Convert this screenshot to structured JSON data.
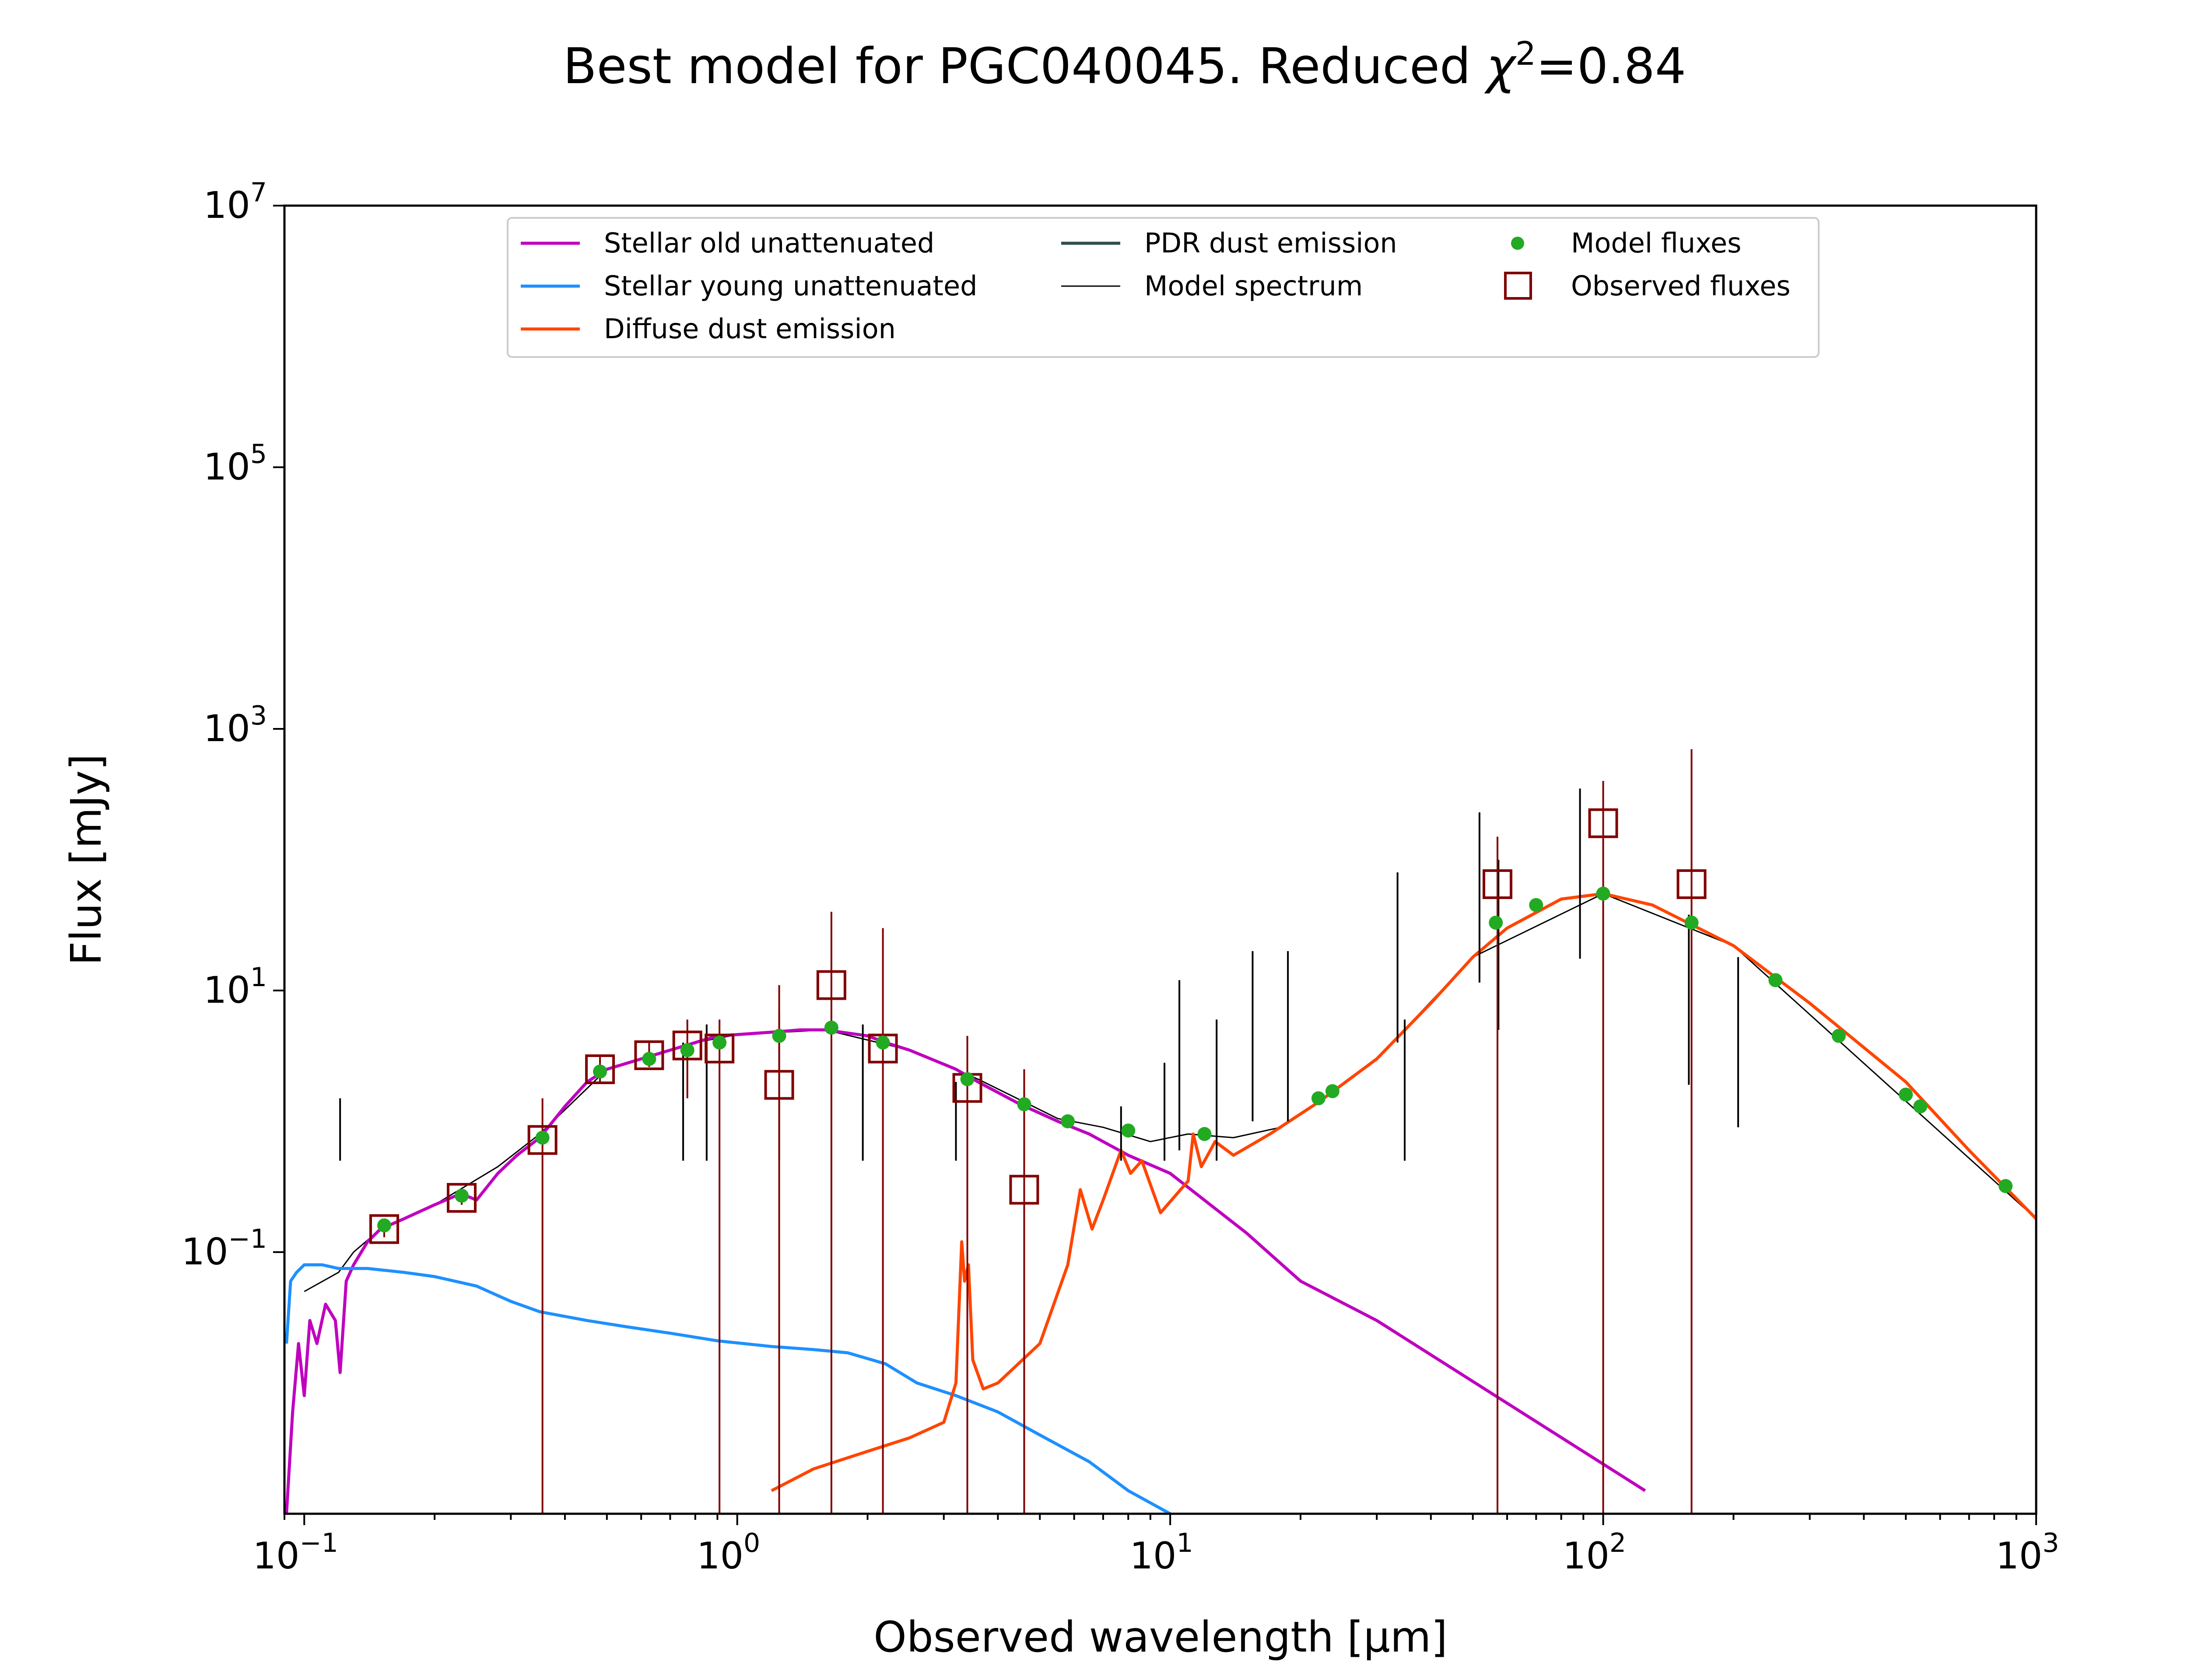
{
  "chart_data": {
    "type": "line",
    "title": {
      "main": "Best model for PGC040045. Reduced ",
      "symbol": "χ",
      "exp": "2",
      "value": "=0.84"
    },
    "xlabel": "Observed wavelength [μm]",
    "ylabel": "Flux [mJy]",
    "xscale": "log",
    "yscale": "log",
    "xlim": [
      0.09,
      1000
    ],
    "ylim": [
      0.001,
      10000000
    ],
    "xticks": [
      {
        "value": 0.1,
        "base": "10",
        "exp": "−1"
      },
      {
        "value": 1,
        "base": "10",
        "exp": "0"
      },
      {
        "value": 10,
        "base": "10",
        "exp": "1"
      },
      {
        "value": 100,
        "base": "10",
        "exp": "2"
      },
      {
        "value": 1000,
        "base": "10",
        "exp": "3"
      }
    ],
    "yticks": [
      {
        "value": 0.1,
        "base": "10",
        "exp": "−1"
      },
      {
        "value": 10,
        "base": "10",
        "exp": "1"
      },
      {
        "value": 1000,
        "base": "10",
        "exp": "3"
      },
      {
        "value": 100000,
        "base": "10",
        "exp": "5"
      },
      {
        "value": 10000000,
        "base": "10",
        "exp": "7"
      }
    ],
    "legend_position": "top-center",
    "legend": [
      {
        "label": "Stellar old unattenuated",
        "kind": "line",
        "color": "#bf00bf"
      },
      {
        "label": "Stellar young unattenuated",
        "kind": "line",
        "color": "#1e90ff"
      },
      {
        "label": "Diffuse dust emission",
        "kind": "line",
        "color": "#ff4500"
      },
      {
        "label": "PDR dust emission",
        "kind": "line",
        "color": "#2f4f4f"
      },
      {
        "label": "Model spectrum",
        "kind": "thinline",
        "color": "#000000"
      },
      {
        "label": "Model fluxes",
        "kind": "dot",
        "color": "#22aa22"
      },
      {
        "label": "Observed fluxes",
        "kind": "square",
        "color": "#800000"
      }
    ],
    "series": [
      {
        "name": "Stellar old unattenuated",
        "color": "#bf00bf",
        "points": [
          [
            0.091,
            0.001
          ],
          [
            0.094,
            0.006
          ],
          [
            0.097,
            0.02
          ],
          [
            0.1,
            0.008
          ],
          [
            0.103,
            0.03
          ],
          [
            0.107,
            0.02
          ],
          [
            0.112,
            0.04
          ],
          [
            0.118,
            0.03
          ],
          [
            0.121,
            0.012
          ],
          [
            0.125,
            0.06
          ],
          [
            0.13,
            0.08
          ],
          [
            0.14,
            0.12
          ],
          [
            0.15,
            0.15
          ],
          [
            0.17,
            0.18
          ],
          [
            0.2,
            0.23
          ],
          [
            0.23,
            0.28
          ],
          [
            0.25,
            0.25
          ],
          [
            0.28,
            0.4
          ],
          [
            0.31,
            0.55
          ],
          [
            0.35,
            0.75
          ],
          [
            0.4,
            1.3
          ],
          [
            0.45,
            2.0
          ],
          [
            0.5,
            2.5
          ],
          [
            0.6,
            3.0
          ],
          [
            0.7,
            3.5
          ],
          [
            0.8,
            4.0
          ],
          [
            0.9,
            4.5
          ],
          [
            1.0,
            4.6
          ],
          [
            1.2,
            4.8
          ],
          [
            1.4,
            5.0
          ],
          [
            1.6,
            5.0
          ],
          [
            2.0,
            4.5
          ],
          [
            2.2,
            4.0
          ],
          [
            2.5,
            3.5
          ],
          [
            2.8,
            3.0
          ],
          [
            3.2,
            2.5
          ],
          [
            3.6,
            2.0
          ],
          [
            4.5,
            1.35
          ],
          [
            5.5,
            1.0
          ],
          [
            6.5,
            0.8
          ],
          [
            8,
            0.55
          ],
          [
            10,
            0.4
          ],
          [
            15,
            0.14
          ],
          [
            20,
            0.06
          ],
          [
            30,
            0.03
          ],
          [
            60,
            0.007
          ],
          [
            125,
            0.0015
          ]
        ]
      },
      {
        "name": "Stellar young unattenuated",
        "color": "#1e90ff",
        "points": [
          [
            0.091,
            0.02
          ],
          [
            0.093,
            0.06
          ],
          [
            0.096,
            0.07
          ],
          [
            0.1,
            0.08
          ],
          [
            0.11,
            0.08
          ],
          [
            0.12,
            0.075
          ],
          [
            0.14,
            0.075
          ],
          [
            0.17,
            0.07
          ],
          [
            0.2,
            0.065
          ],
          [
            0.25,
            0.055
          ],
          [
            0.3,
            0.042
          ],
          [
            0.35,
            0.035
          ],
          [
            0.45,
            0.03
          ],
          [
            0.55,
            0.027
          ],
          [
            0.7,
            0.024
          ],
          [
            0.9,
            0.021
          ],
          [
            1.2,
            0.019
          ],
          [
            1.5,
            0.018
          ],
          [
            1.8,
            0.017
          ],
          [
            2.2,
            0.014
          ],
          [
            2.6,
            0.01
          ],
          [
            3.2,
            0.008
          ],
          [
            4.0,
            0.006
          ],
          [
            5.0,
            0.004
          ],
          [
            6.5,
            0.0025
          ],
          [
            8,
            0.0015
          ],
          [
            10,
            0.001
          ]
        ]
      },
      {
        "name": "Diffuse dust emission",
        "color": "#ff4500",
        "points": [
          [
            1.2,
            0.0015
          ],
          [
            1.5,
            0.0022
          ],
          [
            2.0,
            0.003
          ],
          [
            2.5,
            0.0038
          ],
          [
            3.0,
            0.005
          ],
          [
            3.2,
            0.01
          ],
          [
            3.3,
            0.12
          ],
          [
            3.35,
            0.06
          ],
          [
            3.42,
            0.08
          ],
          [
            3.5,
            0.015
          ],
          [
            3.7,
            0.009
          ],
          [
            4.0,
            0.01
          ],
          [
            5.0,
            0.02
          ],
          [
            5.8,
            0.08
          ],
          [
            6.2,
            0.3
          ],
          [
            6.6,
            0.15
          ],
          [
            7.0,
            0.25
          ],
          [
            7.7,
            0.6
          ],
          [
            8.1,
            0.4
          ],
          [
            8.6,
            0.5
          ],
          [
            9.5,
            0.2
          ],
          [
            11.0,
            0.35
          ],
          [
            11.3,
            0.8
          ],
          [
            11.8,
            0.45
          ],
          [
            12.7,
            0.7
          ],
          [
            14,
            0.55
          ],
          [
            17,
            0.8
          ],
          [
            22,
            1.4
          ],
          [
            30,
            3.0
          ],
          [
            40,
            8
          ],
          [
            50,
            18
          ],
          [
            60,
            30
          ],
          [
            80,
            50
          ],
          [
            100,
            55
          ],
          [
            130,
            45
          ],
          [
            200,
            22
          ],
          [
            300,
            8
          ],
          [
            500,
            2
          ],
          [
            700,
            0.6
          ],
          [
            1000,
            0.18
          ]
        ]
      },
      {
        "name": "Model spectrum",
        "color": "#000000",
        "points": [
          [
            0.1,
            0.05
          ],
          [
            0.12,
            0.07
          ],
          [
            0.13,
            0.1
          ],
          [
            0.15,
            0.15
          ],
          [
            0.2,
            0.23
          ],
          [
            0.28,
            0.45
          ],
          [
            0.35,
            0.8
          ],
          [
            0.5,
            2.5
          ],
          [
            0.8,
            4
          ],
          [
            1.0,
            4.6
          ],
          [
            1.6,
            5
          ],
          [
            2.5,
            3.5
          ],
          [
            3.6,
            2.1
          ],
          [
            5.5,
            1.05
          ],
          [
            7,
            0.9
          ],
          [
            9,
            0.7
          ],
          [
            11,
            0.8
          ],
          [
            14,
            0.75
          ],
          [
            18,
            0.9
          ],
          [
            22,
            1.4
          ],
          [
            30,
            3
          ],
          [
            50,
            18
          ],
          [
            100,
            55
          ],
          [
            200,
            22
          ],
          [
            1000,
            0.18
          ]
        ]
      }
    ],
    "spectrum_lines": [
      [
        0.121,
        1.5
      ],
      [
        0.75,
        4.0
      ],
      [
        0.85,
        5.5
      ],
      [
        1.25,
        7.0
      ],
      [
        1.95,
        5.5
      ],
      [
        3.2,
        2.0
      ],
      [
        7.7,
        1.3
      ],
      [
        9.7,
        2.8
      ],
      [
        10.5,
        12
      ],
      [
        12.8,
        6
      ],
      [
        15.5,
        20
      ],
      [
        18.7,
        20
      ],
      [
        33.5,
        80
      ],
      [
        34.8,
        6
      ],
      [
        51.8,
        230
      ],
      [
        57.3,
        100
      ],
      [
        88.4,
        350
      ],
      [
        157.7,
        38
      ],
      [
        205,
        18
      ]
    ],
    "model_fluxes": {
      "name": "Model fluxes",
      "color": "#22aa22",
      "points": [
        [
          0.153,
          0.16
        ],
        [
          0.231,
          0.27
        ],
        [
          0.355,
          0.75
        ],
        [
          0.482,
          2.4
        ],
        [
          0.626,
          3.0
        ],
        [
          0.767,
          3.5
        ],
        [
          0.91,
          4.0
        ],
        [
          1.25,
          4.5
        ],
        [
          1.65,
          5.2
        ],
        [
          2.17,
          4.0
        ],
        [
          3.4,
          2.1
        ],
        [
          4.6,
          1.35
        ],
        [
          5.8,
          1.0
        ],
        [
          8.0,
          0.85
        ],
        [
          12,
          0.8
        ],
        [
          22,
          1.5
        ],
        [
          23.7,
          1.7
        ],
        [
          56.5,
          33
        ],
        [
          70,
          45
        ],
        [
          100,
          55
        ],
        [
          160,
          33
        ],
        [
          250,
          12
        ],
        [
          350,
          4.5
        ],
        [
          500,
          1.6
        ],
        [
          540,
          1.3
        ],
        [
          850,
          0.32
        ]
      ]
    },
    "observed_fluxes": {
      "name": "Observed fluxes",
      "color": "#800000",
      "points": [
        {
          "x": 0.153,
          "y": 0.15,
          "err_low": 0.13,
          "err_high": 0.17
        },
        {
          "x": 0.231,
          "y": 0.26,
          "err_low": 0.23,
          "err_high": 0.3
        },
        {
          "x": 0.355,
          "y": 0.72,
          "err_low": 0.001,
          "err_high": 1.5
        },
        {
          "x": 0.482,
          "y": 2.5,
          "err_low": 2.0,
          "err_high": 3.2
        },
        {
          "x": 0.626,
          "y": 3.2,
          "err_low": 2.6,
          "err_high": 4.0
        },
        {
          "x": 0.767,
          "y": 3.8,
          "err_low": 1.5,
          "err_high": 6.0
        },
        {
          "x": 0.91,
          "y": 3.6,
          "err_low": 0.001,
          "err_high": 6.0
        },
        {
          "x": 1.25,
          "y": 1.9,
          "err_low": 0.001,
          "err_high": 11
        },
        {
          "x": 1.65,
          "y": 11,
          "err_low": 0.001,
          "err_high": 40
        },
        {
          "x": 2.17,
          "y": 3.6,
          "err_low": 0.001,
          "err_high": 30
        },
        {
          "x": 3.4,
          "y": 1.8,
          "err_low": 0.001,
          "err_high": 4.5
        },
        {
          "x": 4.6,
          "y": 0.3,
          "err_low": 0.001,
          "err_high": 2.5
        },
        {
          "x": 57,
          "y": 65,
          "err_low": 0.001,
          "err_high": 150
        },
        {
          "x": 100,
          "y": 190,
          "err_low": 0.001,
          "err_high": 400
        },
        {
          "x": 160,
          "y": 65,
          "err_low": 0.001,
          "err_high": 700
        }
      ]
    }
  }
}
